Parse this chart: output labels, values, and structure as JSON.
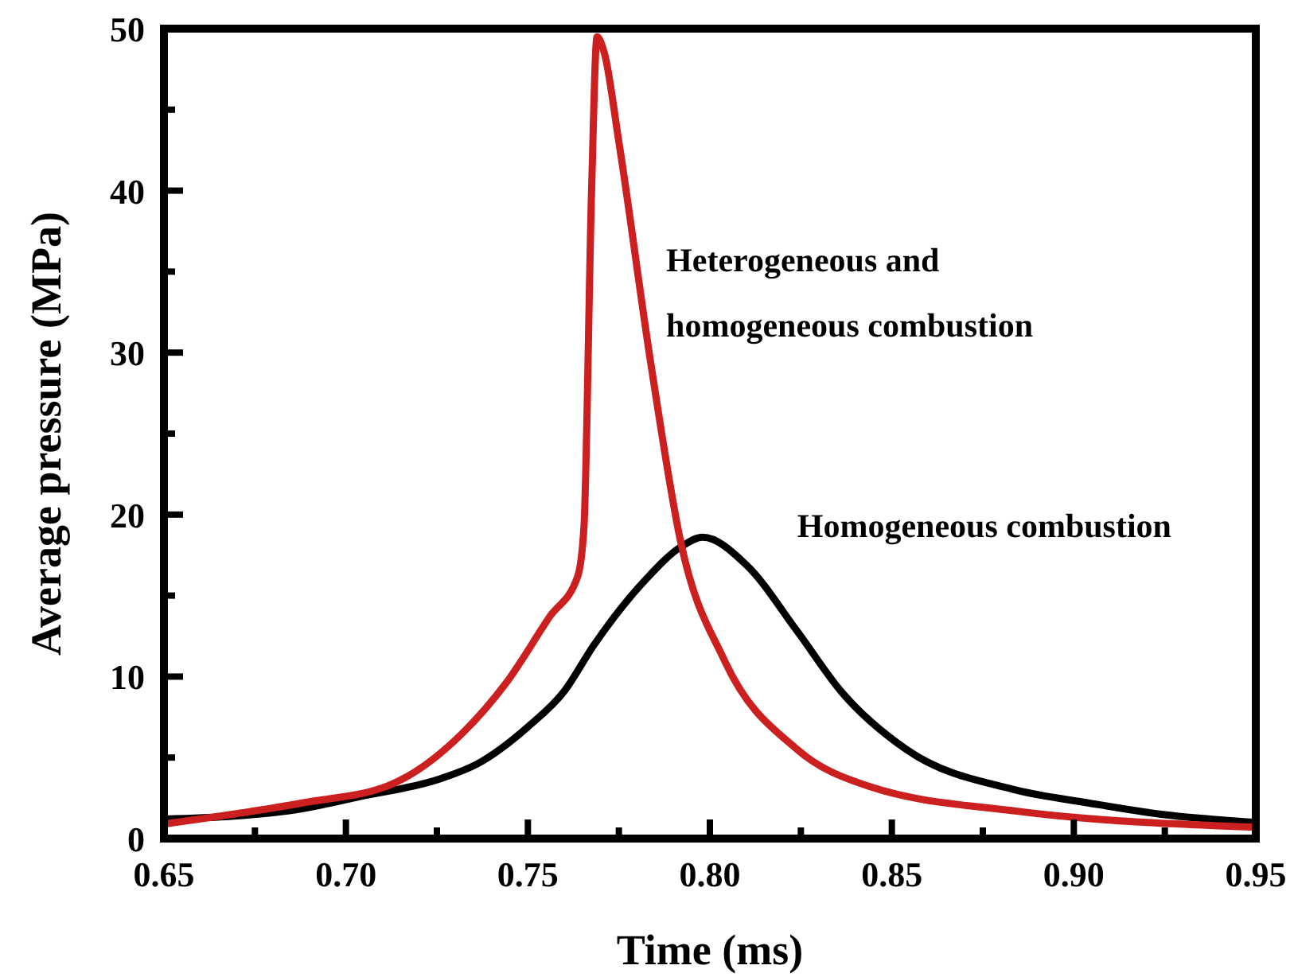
{
  "chart_data": {
    "type": "line",
    "xlabel": "Time (ms)",
    "ylabel": "Average pressure (MPa)",
    "xlim": [
      0.65,
      0.95
    ],
    "ylim": [
      0,
      50
    ],
    "xticks": [
      0.65,
      {
        "value": 0.675,
        "label": null
      },
      "0.70",
      {
        "value": 0.725,
        "label": null
      },
      0.75,
      {
        "value": 0.775,
        "label": null
      },
      "0.80",
      {
        "value": 0.825,
        "label": null
      },
      0.85,
      {
        "value": 0.875,
        "label": null
      },
      "0.90",
      {
        "value": 0.925,
        "label": null
      },
      0.95
    ],
    "yticks": [
      0,
      {
        "value": 5,
        "label": null
      },
      10,
      {
        "value": 15,
        "label": null
      },
      20,
      {
        "value": 25,
        "label": null
      },
      30,
      {
        "value": 35,
        "label": null
      },
      40,
      {
        "value": 45,
        "label": null
      },
      50
    ],
    "grid": false,
    "marker": "none",
    "line_style": "solid",
    "series": [
      {
        "name": "Homogeneous combustion",
        "color": "#000000",
        "x": [
          0.65,
          0.684,
          0.704,
          0.726,
          0.736,
          0.75,
          0.76,
          0.768,
          0.782,
          0.792,
          0.798,
          0.81,
          0.824,
          0.836,
          0.854,
          0.884,
          0.904,
          0.924,
          0.95
        ],
        "values": [
          1.2,
          1.7,
          2.6,
          3.7,
          4.6,
          6.9,
          9.1,
          11.9,
          15.9,
          18,
          18.6,
          16.9,
          12.8,
          9.1,
          5.5,
          3,
          2.2,
          1.5,
          1
        ]
      },
      {
        "name": "Heterogeneous and homogeneous combustion",
        "color": "#cc1f1f",
        "x": [
          0.65,
          0.688,
          0.712,
          0.732,
          0.744,
          0.756,
          0.7637,
          0.7654,
          0.7675,
          0.769,
          0.771,
          0.775,
          0.784,
          0.792,
          0.804,
          0.824,
          0.844,
          0.884,
          0.95
        ],
        "values": [
          0.9,
          2.2,
          3.3,
          6.5,
          9.6,
          13.7,
          16.2,
          19.2,
          40,
          49.5,
          48.5,
          43,
          29,
          18.3,
          11,
          5.5,
          3.2,
          1.7,
          0.7
        ]
      }
    ]
  }
}
